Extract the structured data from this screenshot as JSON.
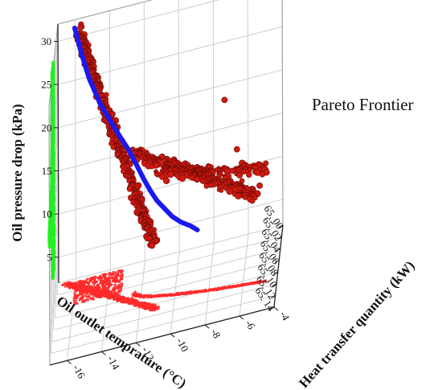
{
  "chart_data": {
    "type": "scatter",
    "projection": "3d",
    "title": "",
    "annotation": "Pareto Frontier",
    "xlabel": "Oil outlet temprature (°C)",
    "ylabel": "Heat transfer quantity (kW)",
    "zlabel": "Oil pressure drop (kPa)",
    "xlim": [
      65.0,
      65.14
    ],
    "ylim": [
      -17,
      -4
    ],
    "zlim": [
      2,
      32
    ],
    "x_ticks": [
      "65. 00",
      "65. 02",
      "65. 04",
      "65. 06",
      "65. 08",
      "65. 10",
      "65. 12",
      "65. 14"
    ],
    "y_ticks": [
      "-4",
      "-6",
      "-8",
      "-10",
      "-12",
      "-14",
      "-16"
    ],
    "z_ticks": [
      "5",
      "10",
      "15",
      "20",
      "25",
      "30"
    ],
    "grid": true,
    "colors": {
      "population": "#d01a10",
      "projection_side": "#22ee22",
      "projection_floor": "#ff2a2a",
      "pareto_front": "#1a1aee"
    },
    "pareto_front": {
      "x": [
        65.007,
        65.015,
        65.025,
        65.035,
        65.045,
        65.055,
        65.062,
        65.068,
        65.072,
        65.076,
        65.08,
        65.083,
        65.086,
        65.09,
        65.094
      ],
      "y": [
        -16.0,
        -15.6,
        -15.1,
        -14.4,
        -13.5,
        -12.7,
        -12.2,
        -11.8,
        -11.4,
        -11.0,
        -10.5,
        -10.1,
        -9.6,
        -9.0,
        -8.6
      ],
      "z": [
        31.5,
        29.0,
        26.4,
        23.7,
        21.0,
        18.9,
        17.3,
        16.0,
        14.7,
        13.6,
        12.6,
        11.8,
        11.1,
        10.6,
        10.2
      ]
    },
    "population_branches": [
      {
        "x": [
          65.01,
          65.084
        ],
        "y": [
          -15.8,
          -11.2
        ],
        "z": [
          31.3,
          9.2
        ]
      },
      {
        "x": [
          65.052,
          65.084
        ],
        "y": [
          -12.6,
          -5.3
        ],
        "z": [
          18.4,
          11.9
        ]
      },
      {
        "x": [
          65.074,
          65.082
        ],
        "y": [
          -11.0,
          -4.6
        ],
        "z": [
          16.8,
          14.4
        ]
      }
    ],
    "side_projection_ranges": {
      "main_column": {
        "x": [
          65.072,
          65.092
        ],
        "z": [
          8.5,
          32.5
        ]
      },
      "horizontal_band": {
        "x": [
          65.08,
          65.14
        ],
        "z": [
          16.5,
          21.0
        ]
      },
      "upper_branch": {
        "x": [
          65.076,
          65.1
        ],
        "z": [
          21.0,
          29.0
        ]
      }
    },
    "floor_projection_ranges": {
      "main_band": {
        "x": [
          65.005,
          65.09
        ],
        "y": [
          -16.5,
          -11.0
        ]
      },
      "long_branch": {
        "x": [
          65.05,
          65.09
        ],
        "y": [
          -12.5,
          -4.8
        ]
      },
      "cluster": {
        "x": [
          65.005,
          65.045
        ],
        "y": [
          -16.0,
          -13.2
        ]
      }
    }
  }
}
